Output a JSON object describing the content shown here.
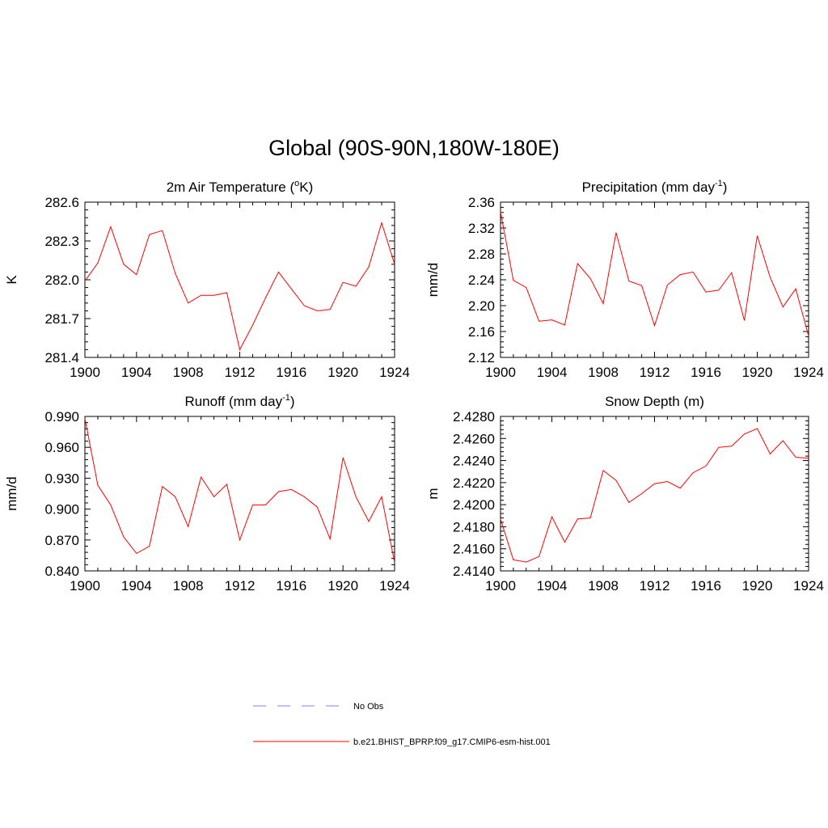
{
  "title": "Global (90S-90N,180W-180E)",
  "colors": {
    "model_line": "#ff0000",
    "obs_line": "#9999ff",
    "axis": "#000000"
  },
  "legend": [
    {
      "label": "No Obs",
      "style": "dashed",
      "color": "#9999ff"
    },
    {
      "label": "b.e21.BHIST_BPRP.f09_g17.CMIP6-esm-hist.001",
      "style": "solid",
      "color": "#ff0000"
    }
  ],
  "chart_data": [
    {
      "type": "line",
      "title": "2m Air Temperature (",
      "title_sup": "o",
      "title_after": "K)",
      "ylabel": "K",
      "xlim": [
        1900,
        1924
      ],
      "ylim": [
        281.4,
        282.6
      ],
      "xticks": [
        "1900",
        "1904",
        "1908",
        "1912",
        "1916",
        "1920",
        "1924"
      ],
      "yticks": [
        "281.4",
        "281.7",
        "282.0",
        "282.3",
        "282.6"
      ],
      "x": [
        1900,
        1901,
        1902,
        1903,
        1904,
        1905,
        1906,
        1907,
        1908,
        1909,
        1910,
        1911,
        1912,
        1913,
        1914,
        1915,
        1916,
        1917,
        1918,
        1919,
        1920,
        1921,
        1922,
        1923,
        1924
      ],
      "series": [
        {
          "name": "b.e21.BHIST_BPRP.f09_g17.CMIP6-esm-hist.001",
          "values": [
            281.99,
            282.13,
            282.41,
            282.12,
            282.04,
            282.35,
            282.38,
            282.05,
            281.82,
            281.88,
            281.88,
            281.9,
            281.46,
            281.65,
            281.86,
            282.06,
            281.93,
            281.8,
            281.76,
            281.77,
            281.98,
            281.95,
            282.1,
            282.44,
            282.12
          ]
        }
      ]
    },
    {
      "type": "line",
      "title": "Precipitation (mm day",
      "title_sup": "-1",
      "title_after": ")",
      "ylabel": "mm/d",
      "xlim": [
        1900,
        1924
      ],
      "ylim": [
        2.12,
        2.36
      ],
      "xticks": [
        "1900",
        "1904",
        "1908",
        "1912",
        "1916",
        "1920",
        "1924"
      ],
      "yticks": [
        "2.12",
        "2.16",
        "2.20",
        "2.24",
        "2.28",
        "2.32",
        "2.36"
      ],
      "x": [
        1900,
        1901,
        1902,
        1903,
        1904,
        1905,
        1906,
        1907,
        1908,
        1909,
        1910,
        1911,
        1912,
        1913,
        1914,
        1915,
        1916,
        1917,
        1918,
        1919,
        1920,
        1921,
        1922,
        1923,
        1924
      ],
      "series": [
        {
          "name": "b.e21.BHIST_BPRP.f09_g17.CMIP6-esm-hist.001",
          "values": [
            2.345,
            2.239,
            2.228,
            2.176,
            2.178,
            2.17,
            2.265,
            2.242,
            2.203,
            2.313,
            2.238,
            2.231,
            2.169,
            2.232,
            2.248,
            2.252,
            2.221,
            2.224,
            2.251,
            2.177,
            2.308,
            2.244,
            2.198,
            2.226,
            2.153
          ]
        }
      ]
    },
    {
      "type": "line",
      "title": "Runoff (mm day",
      "title_sup": "-1",
      "title_after": ")",
      "ylabel": "mm/d",
      "xlim": [
        1900,
        1924
      ],
      "ylim": [
        0.84,
        0.99
      ],
      "xticks": [
        "1900",
        "1904",
        "1908",
        "1912",
        "1916",
        "1920",
        "1924"
      ],
      "yticks": [
        "0.840",
        "0.870",
        "0.900",
        "0.930",
        "0.960",
        "0.990"
      ],
      "x": [
        1900,
        1901,
        1902,
        1903,
        1904,
        1905,
        1906,
        1907,
        1908,
        1909,
        1910,
        1911,
        1912,
        1913,
        1914,
        1915,
        1916,
        1917,
        1918,
        1919,
        1920,
        1921,
        1922,
        1923,
        1924
      ],
      "series": [
        {
          "name": "b.e21.BHIST_BPRP.f09_g17.CMIP6-esm-hist.001",
          "values": [
            0.988,
            0.923,
            0.904,
            0.873,
            0.857,
            0.864,
            0.922,
            0.912,
            0.883,
            0.931,
            0.912,
            0.924,
            0.87,
            0.904,
            0.904,
            0.917,
            0.919,
            0.912,
            0.902,
            0.871,
            0.95,
            0.912,
            0.888,
            0.912,
            0.848
          ]
        }
      ]
    },
    {
      "type": "line",
      "title": "Snow Depth (m)",
      "title_sup": "",
      "title_after": "",
      "ylabel": "m",
      "xlim": [
        1900,
        1924
      ],
      "ylim": [
        2.414,
        2.428
      ],
      "xticks": [
        "1900",
        "1904",
        "1908",
        "1912",
        "1916",
        "1920",
        "1924"
      ],
      "yticks": [
        "2.4140",
        "2.4160",
        "2.4180",
        "2.4200",
        "2.4220",
        "2.4240",
        "2.4260",
        "2.4280"
      ],
      "x": [
        1900,
        1901,
        1902,
        1903,
        1904,
        1905,
        1906,
        1907,
        1908,
        1909,
        1910,
        1911,
        1912,
        1913,
        1914,
        1915,
        1916,
        1917,
        1918,
        1919,
        1920,
        1921,
        1922,
        1923,
        1924
      ],
      "series": [
        {
          "name": "b.e21.BHIST_BPRP.f09_g17.CMIP6-esm-hist.001",
          "values": [
            2.4187,
            2.415,
            2.4148,
            2.4153,
            2.4189,
            2.4166,
            2.4187,
            2.4188,
            2.4231,
            2.4222,
            2.4202,
            2.421,
            2.4219,
            2.4221,
            2.4215,
            2.4229,
            2.4235,
            2.4252,
            2.4253,
            2.4264,
            2.4269,
            2.4246,
            2.4258,
            2.4243,
            2.4242
          ]
        }
      ]
    }
  ]
}
